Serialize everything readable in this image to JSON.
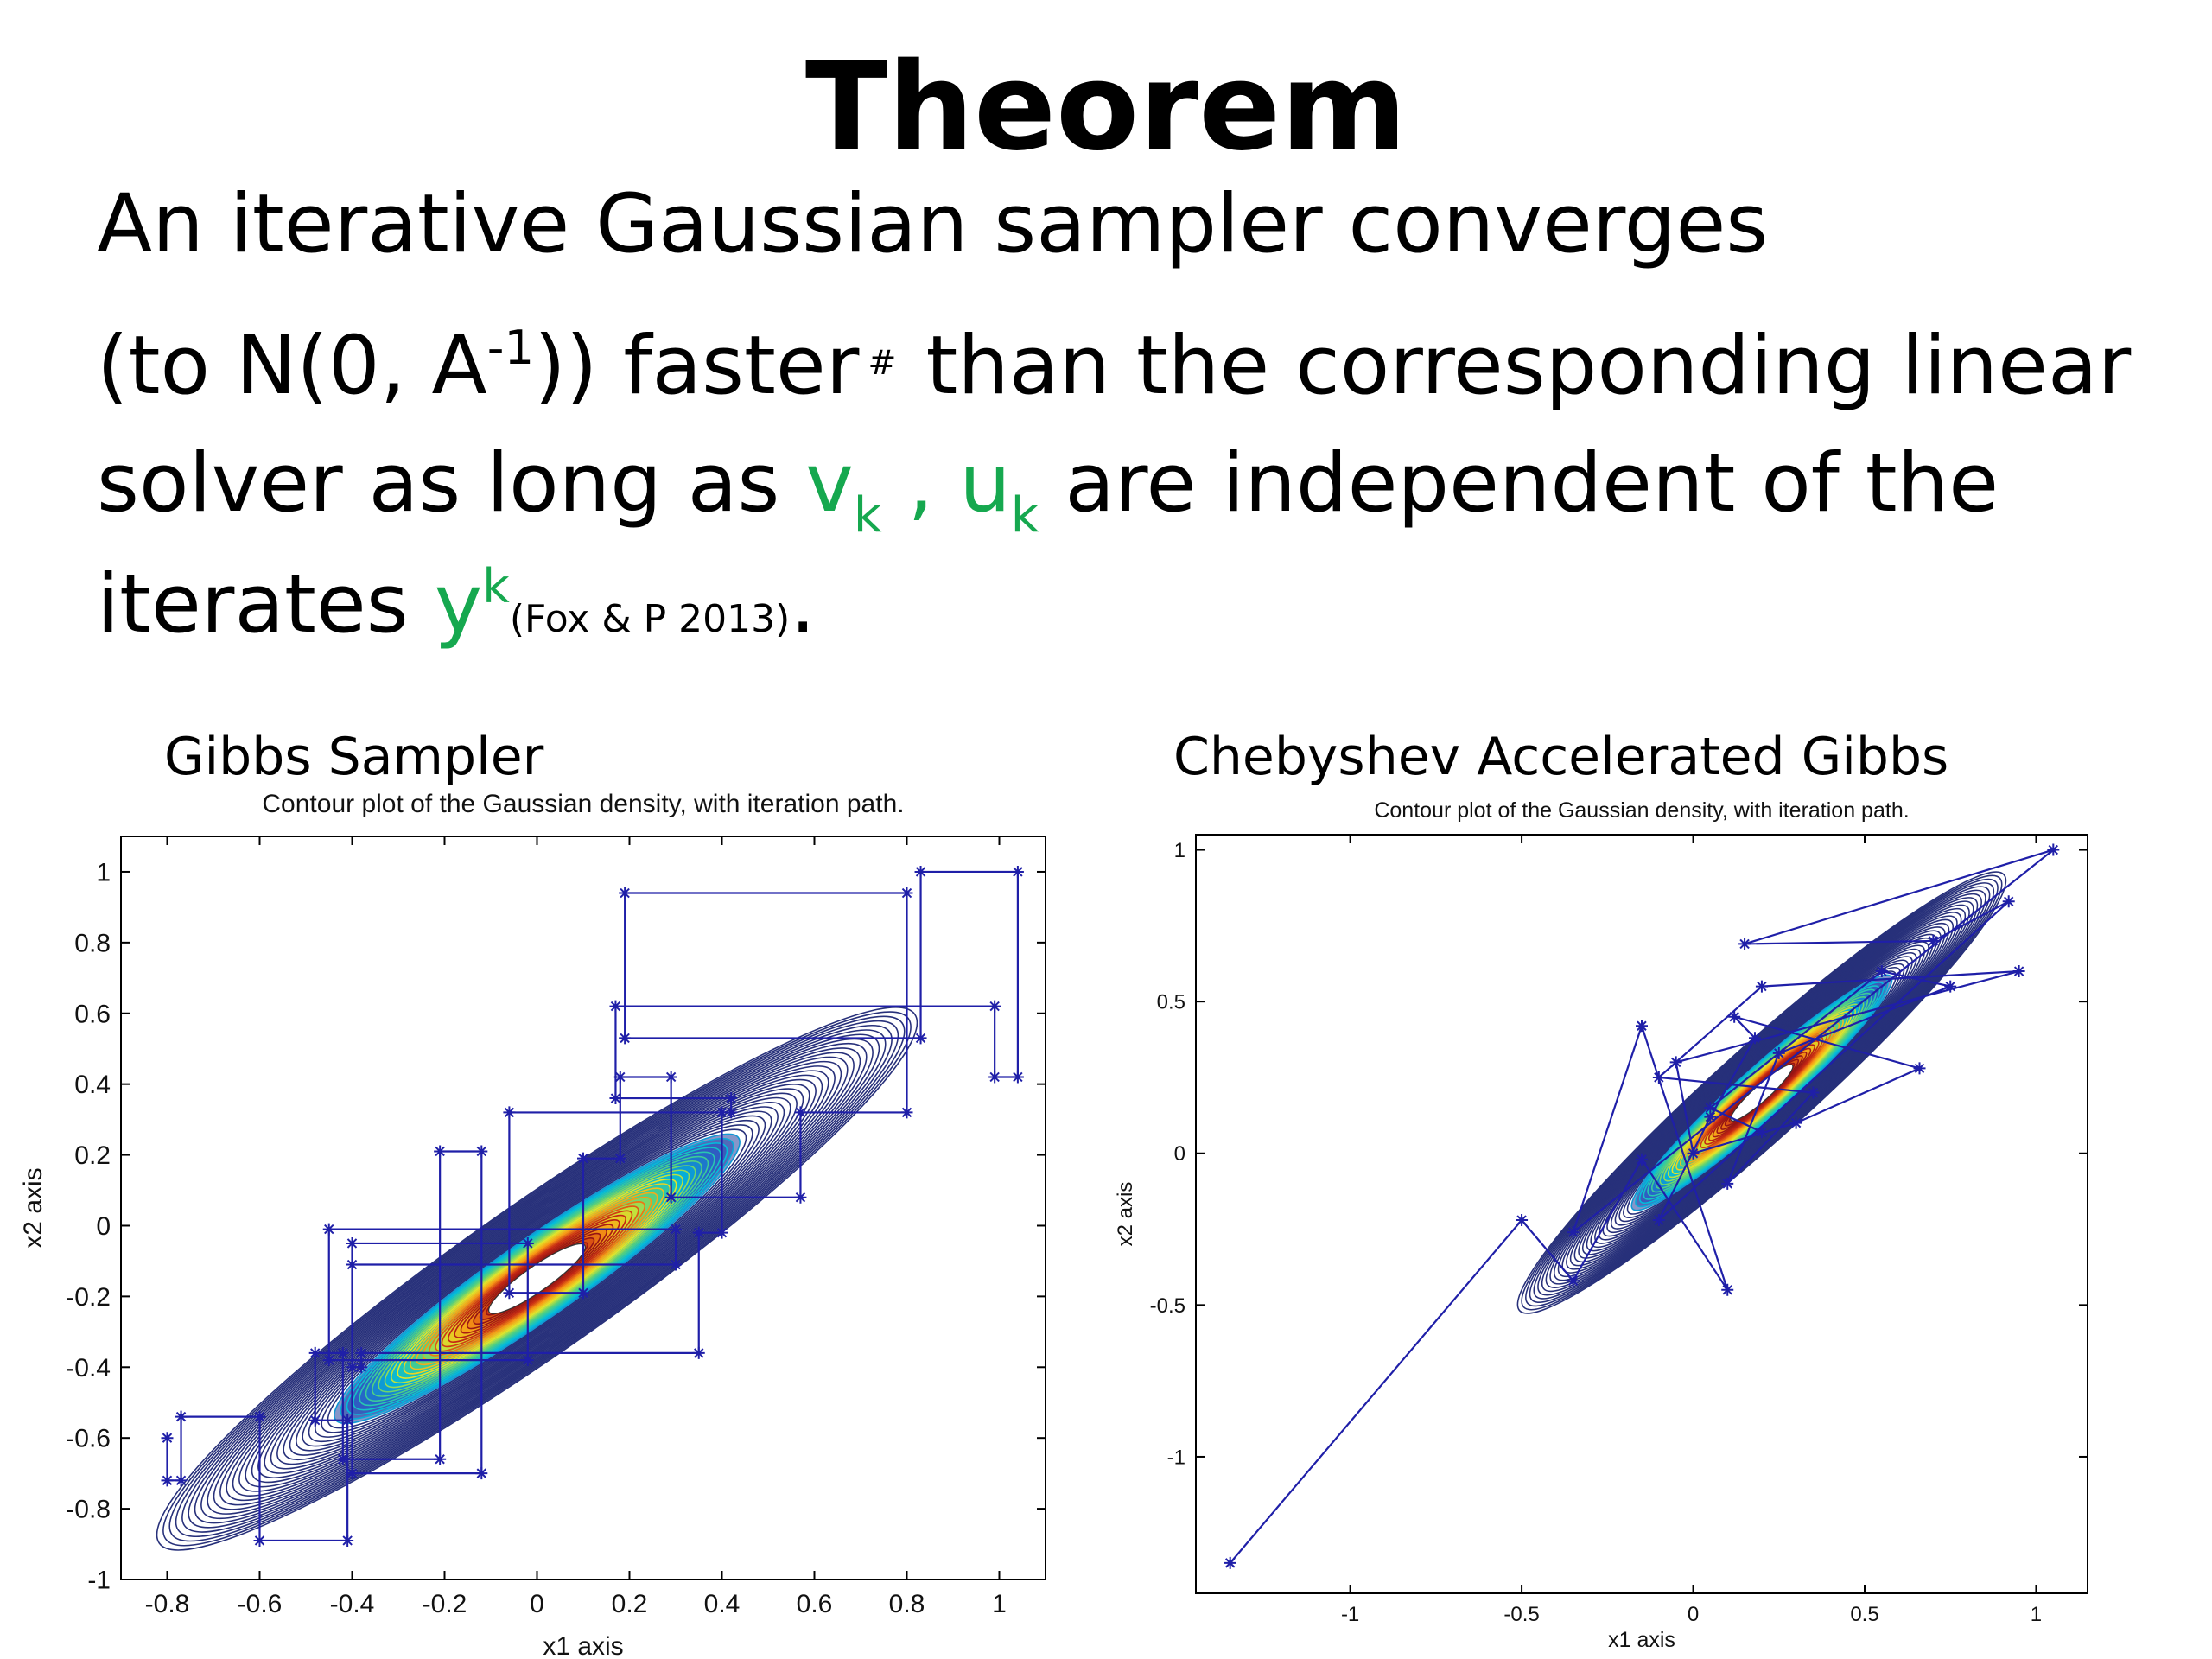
{
  "slide": {
    "title": "Theorem",
    "line1": "An iterative Gaussian sampler converges",
    "line2": {
      "pre": "(to N(0, A",
      "sup": "-1",
      "post": ")) faster",
      "mark": "#",
      "rest": "than the corresponding linear"
    },
    "line3": {
      "pre": "solver as long as ",
      "v": "v",
      "v_sub": "k",
      "comma": " , ",
      "u": "u",
      "u_sub": "k",
      "post": " are independent of the"
    },
    "line4": {
      "pre": "iterates ",
      "y": "y",
      "y_sup": "k",
      "cite": "(Fox & P 2013)",
      "end": "."
    }
  },
  "colors": {
    "accent_green": "#16a84f",
    "path": "#1f1fa8",
    "contour_dark": "#1e2a78"
  },
  "chart_data": [
    {
      "type": "scatter",
      "panel_caption": "Gibbs Sampler",
      "title": "Contour plot of the Gaussian density, with iteration path.",
      "xlabel": "x1 axis",
      "ylabel": "x2 axis",
      "xlim": [
        -0.9,
        1.1
      ],
      "ylim": [
        -1,
        1.1
      ],
      "xticks": [
        -0.8,
        -0.6,
        -0.4,
        -0.2,
        0,
        0.2,
        0.4,
        0.6,
        0.8,
        1
      ],
      "yticks": [
        -1,
        -0.8,
        -0.6,
        -0.4,
        -0.2,
        0,
        0.2,
        0.4,
        0.6,
        0.8,
        1
      ],
      "xtick_labels": [
        "-0.8",
        "-0.6",
        "-0.4",
        "-0.2",
        "0",
        "0.2",
        "0.4",
        "0.6",
        "0.8",
        "1"
      ],
      "ytick_labels": [
        "-1",
        "-0.8",
        "-0.6",
        "-0.4",
        "-0.2",
        "0",
        "0.2",
        "0.4",
        "0.6",
        "0.8",
        "1"
      ],
      "background": "filled contour of a correlated Gaussian density centred near (0,0), positive correlation",
      "path": {
        "x": [
          -0.8,
          -0.8,
          -0.77,
          -0.77,
          -0.6,
          -0.6,
          -0.41,
          -0.41,
          -0.48,
          -0.48,
          -0.42,
          -0.42,
          -0.21,
          -0.21,
          -0.12,
          -0.12,
          -0.4,
          -0.4,
          -0.02,
          -0.02,
          -0.45,
          -0.45,
          0.3,
          0.3,
          -0.4,
          -0.4,
          -0.38,
          -0.38,
          0.35,
          0.35,
          0.4,
          0.4,
          -0.06,
          -0.06,
          0.1,
          0.1,
          0.18,
          0.18,
          0.29,
          0.29,
          0.57,
          0.57,
          0.8,
          0.8,
          0.19,
          0.19,
          0.83,
          0.83,
          1.04,
          1.04,
          0.99,
          0.99,
          0.17,
          0.17,
          0.42,
          0.42
        ],
        "y": [
          -0.6,
          -0.72,
          -0.72,
          -0.54,
          -0.54,
          -0.89,
          -0.89,
          -0.55,
          -0.55,
          -0.36,
          -0.36,
          -0.66,
          -0.66,
          0.21,
          0.21,
          -0.7,
          -0.7,
          -0.05,
          -0.05,
          -0.38,
          -0.38,
          -0.01,
          -0.01,
          -0.11,
          -0.11,
          -0.4,
          -0.4,
          -0.36,
          -0.36,
          -0.02,
          -0.02,
          0.32,
          0.32,
          -0.19,
          -0.19,
          0.19,
          0.19,
          0.42,
          0.42,
          0.08,
          0.08,
          0.32,
          0.32,
          0.94,
          0.94,
          0.53,
          0.53,
          1.0,
          1.0,
          0.42,
          0.42,
          0.62,
          0.62,
          0.36,
          0.36,
          0.32
        ]
      }
    },
    {
      "type": "scatter",
      "panel_caption": "Chebyshev Accelerated Gibbs",
      "title": "Contour plot of the Gaussian density, with iteration path.",
      "xlabel": "x1 axis",
      "ylabel": "x2 axis",
      "xlim": [
        -1.45,
        1.15
      ],
      "ylim": [
        -1.45,
        1.05
      ],
      "xticks": [
        -1,
        -0.5,
        0,
        0.5,
        1
      ],
      "yticks": [
        -1,
        -0.5,
        0,
        0.5,
        1
      ],
      "xtick_labels": [
        "-1",
        "-0.5",
        "0",
        "0.5",
        "1"
      ],
      "ytick_labels": [
        "-1",
        "-0.5",
        "0",
        "0.5",
        "1"
      ],
      "background": "filled contour of a correlated Gaussian density centred near (0.2,0.2), positive correlation",
      "path": {
        "x": [
          -1.35,
          -0.5,
          -0.35,
          -0.15,
          0.1,
          -0.15,
          -0.35,
          1.05,
          0.15,
          0.7,
          0.92,
          -0.1,
          0.05,
          0.18,
          0.12,
          0.66,
          0.3,
          0.0,
          -0.05,
          0.95,
          0.2,
          -0.1,
          0.35,
          0.1,
          0.25,
          0.75,
          0.55,
          0.05,
          0.2
        ],
        "y": [
          -1.35,
          -0.22,
          -0.42,
          -0.02,
          -0.45,
          0.42,
          -0.26,
          1.0,
          0.69,
          0.7,
          0.83,
          -0.22,
          0.12,
          0.38,
          0.45,
          0.28,
          0.1,
          0.0,
          0.3,
          0.6,
          0.55,
          0.25,
          0.2,
          -0.1,
          0.33,
          0.55,
          0.6,
          0.15,
          0.07
        ]
      }
    }
  ]
}
